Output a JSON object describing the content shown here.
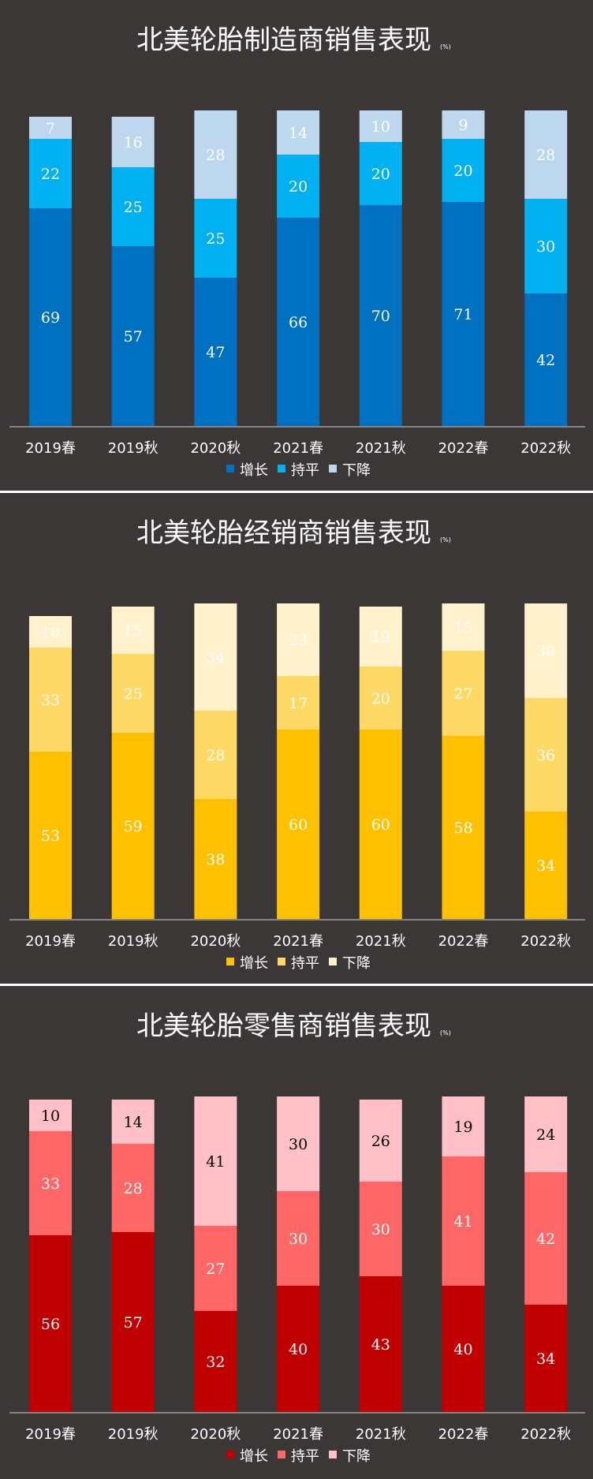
{
  "chart_data": [
    {
      "type": "bar",
      "stacked": true,
      "title": "北美轮胎制造商销售表现",
      "unit": "(%)",
      "categories": [
        "2019春",
        "2019秋",
        "2020秋",
        "2021春",
        "2021秋",
        "2022春",
        "2022秋"
      ],
      "series": [
        {
          "name": "增长",
          "color": "#0070c0",
          "values": [
            69,
            57,
            47,
            66,
            70,
            71,
            42
          ]
        },
        {
          "name": "持平",
          "color": "#00b0f0",
          "values": [
            22,
            25,
            25,
            20,
            20,
            20,
            30
          ]
        },
        {
          "name": "下降",
          "color": "#bdd7ee",
          "values": [
            7,
            16,
            28,
            14,
            10,
            9,
            28
          ]
        }
      ],
      "legend": "bottom-center",
      "grid": false
    },
    {
      "type": "bar",
      "stacked": true,
      "title": "北美轮胎经销商销售表现",
      "unit": "(%)",
      "categories": [
        "2019春",
        "2019秋",
        "2020秋",
        "2021春",
        "2021秋",
        "2022春",
        "2022秋"
      ],
      "series": [
        {
          "name": "增长",
          "color": "#ffc000",
          "values": [
            53,
            59,
            38,
            60,
            60,
            58,
            34
          ]
        },
        {
          "name": "持平",
          "color": "#ffd966",
          "values": [
            33,
            25,
            28,
            17,
            20,
            27,
            36
          ]
        },
        {
          "name": "下降",
          "color": "#fff2cc",
          "values": [
            10,
            15,
            34,
            23,
            19,
            15,
            30
          ]
        }
      ],
      "legend": "bottom-center",
      "grid": false
    },
    {
      "type": "bar",
      "stacked": true,
      "title": "北美轮胎零售商销售表现",
      "unit": "(%)",
      "categories": [
        "2019春",
        "2019秋",
        "2020秋",
        "2021春",
        "2021秋",
        "2022春",
        "2022秋"
      ],
      "series": [
        {
          "name": "增长",
          "color": "#c00000",
          "values": [
            56,
            57,
            32,
            40,
            43,
            40,
            34
          ]
        },
        {
          "name": "持平",
          "color": "#ff6666",
          "values": [
            33,
            28,
            27,
            30,
            30,
            41,
            42
          ]
        },
        {
          "name": "下降",
          "color": "#ffc0c8",
          "values": [
            10,
            14,
            41,
            30,
            26,
            19,
            24
          ]
        }
      ],
      "legend": "bottom-center",
      "grid": false
    }
  ]
}
